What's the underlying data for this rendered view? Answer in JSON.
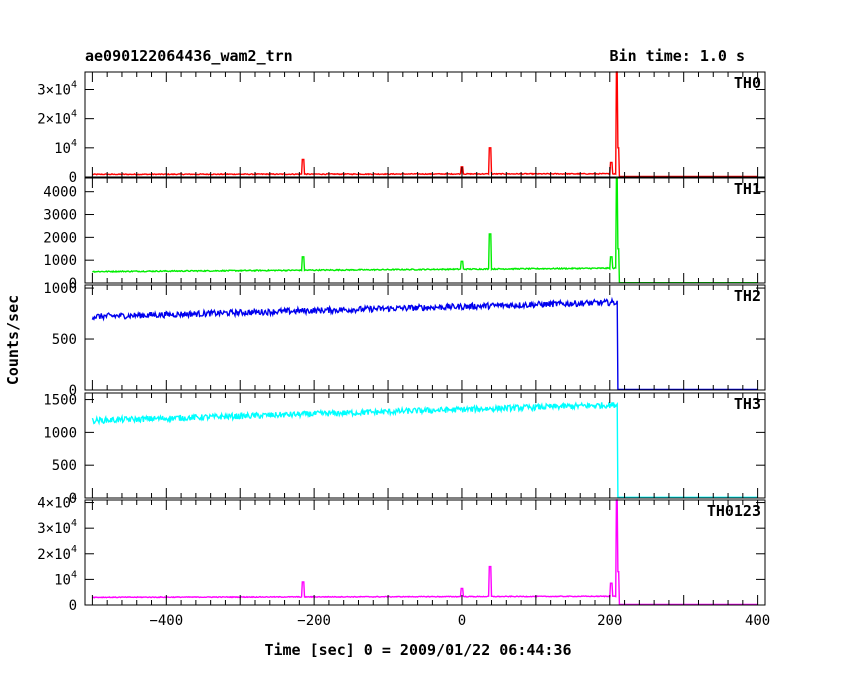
{
  "header": {
    "title": "ae090122064436_wam2_trn",
    "bin_time": "Bin time: 1.0 s"
  },
  "chart_data": {
    "type": "line",
    "xlabel": "Time [sec] 0 = 2009/01/22 06:44:36",
    "ylabel": "Counts/sec",
    "xlim": [
      -510,
      410
    ],
    "x_ticks": [
      -400,
      -200,
      0,
      200,
      400
    ],
    "grid": false,
    "panels": [
      {
        "name": "TH0",
        "color": "#ff0000",
        "ylim": [
          0,
          36000
        ],
        "ticks": [
          {
            "v": 0,
            "mant": "0"
          },
          {
            "v": 10000,
            "mant": "10",
            "exp": "4"
          },
          {
            "v": 20000,
            "mant": "2×10",
            "exp": "4"
          },
          {
            "v": 30000,
            "mant": "3×10",
            "exp": "4"
          }
        ],
        "baseline": [
          900,
          1100
        ],
        "noise": 150,
        "spikes": [
          [
            -215,
            6000
          ],
          [
            0,
            3500
          ],
          [
            38,
            10000
          ],
          [
            202,
            5000
          ],
          [
            210,
            36000
          ],
          [
            212,
            10000
          ]
        ],
        "cutoff_x": 212,
        "after": 200
      },
      {
        "name": "TH1",
        "color": "#00ee00",
        "ylim": [
          0,
          4600
        ],
        "ticks": [
          {
            "v": 0,
            "mant": "0"
          },
          {
            "v": 1000,
            "mant": "1000"
          },
          {
            "v": 2000,
            "mant": "2000"
          },
          {
            "v": 3000,
            "mant": "3000"
          },
          {
            "v": 4000,
            "mant": "4000"
          }
        ],
        "baseline": [
          500,
          650
        ],
        "noise": 25,
        "spikes": [
          [
            -215,
            1150
          ],
          [
            0,
            950
          ],
          [
            38,
            2150
          ],
          [
            202,
            1150
          ],
          [
            210,
            4600
          ],
          [
            212,
            1500
          ]
        ],
        "cutoff_x": 212,
        "after": 15
      },
      {
        "name": "TH2",
        "color": "#0000ee",
        "ylim": [
          0,
          1030
        ],
        "ticks": [
          {
            "v": 0,
            "mant": "0"
          },
          {
            "v": 500,
            "mant": "500"
          },
          {
            "v": 1000,
            "mant": "1000"
          }
        ],
        "baseline": [
          720,
          860
        ],
        "noise": 30,
        "spikes": [],
        "cutoff_x": 210,
        "after": 5
      },
      {
        "name": "TH3",
        "color": "#00ffff",
        "ylim": [
          0,
          1600
        ],
        "ticks": [
          {
            "v": 0,
            "mant": "0"
          },
          {
            "v": 500,
            "mant": "500"
          },
          {
            "v": 1000,
            "mant": "1000"
          },
          {
            "v": 1500,
            "mant": "1500"
          }
        ],
        "baseline": [
          1180,
          1420
        ],
        "noise": 45,
        "spikes": [],
        "cutoff_x": 210,
        "after": 10
      },
      {
        "name": "TH0123",
        "color": "#ff00ff",
        "ylim": [
          0,
          41000
        ],
        "ticks": [
          {
            "v": 0,
            "mant": "0"
          },
          {
            "v": 10000,
            "mant": "10",
            "exp": "4"
          },
          {
            "v": 20000,
            "mant": "2×10",
            "exp": "4"
          },
          {
            "v": 30000,
            "mant": "3×10",
            "exp": "4"
          },
          {
            "v": 40000,
            "mant": "4×10",
            "exp": "4"
          }
        ],
        "baseline": [
          3000,
          3400
        ],
        "noise": 150,
        "spikes": [
          [
            -215,
            9000
          ],
          [
            0,
            6500
          ],
          [
            38,
            15000
          ],
          [
            202,
            8500
          ],
          [
            210,
            41000
          ],
          [
            212,
            13000
          ]
        ],
        "cutoff_x": 212,
        "after": 200
      }
    ]
  }
}
